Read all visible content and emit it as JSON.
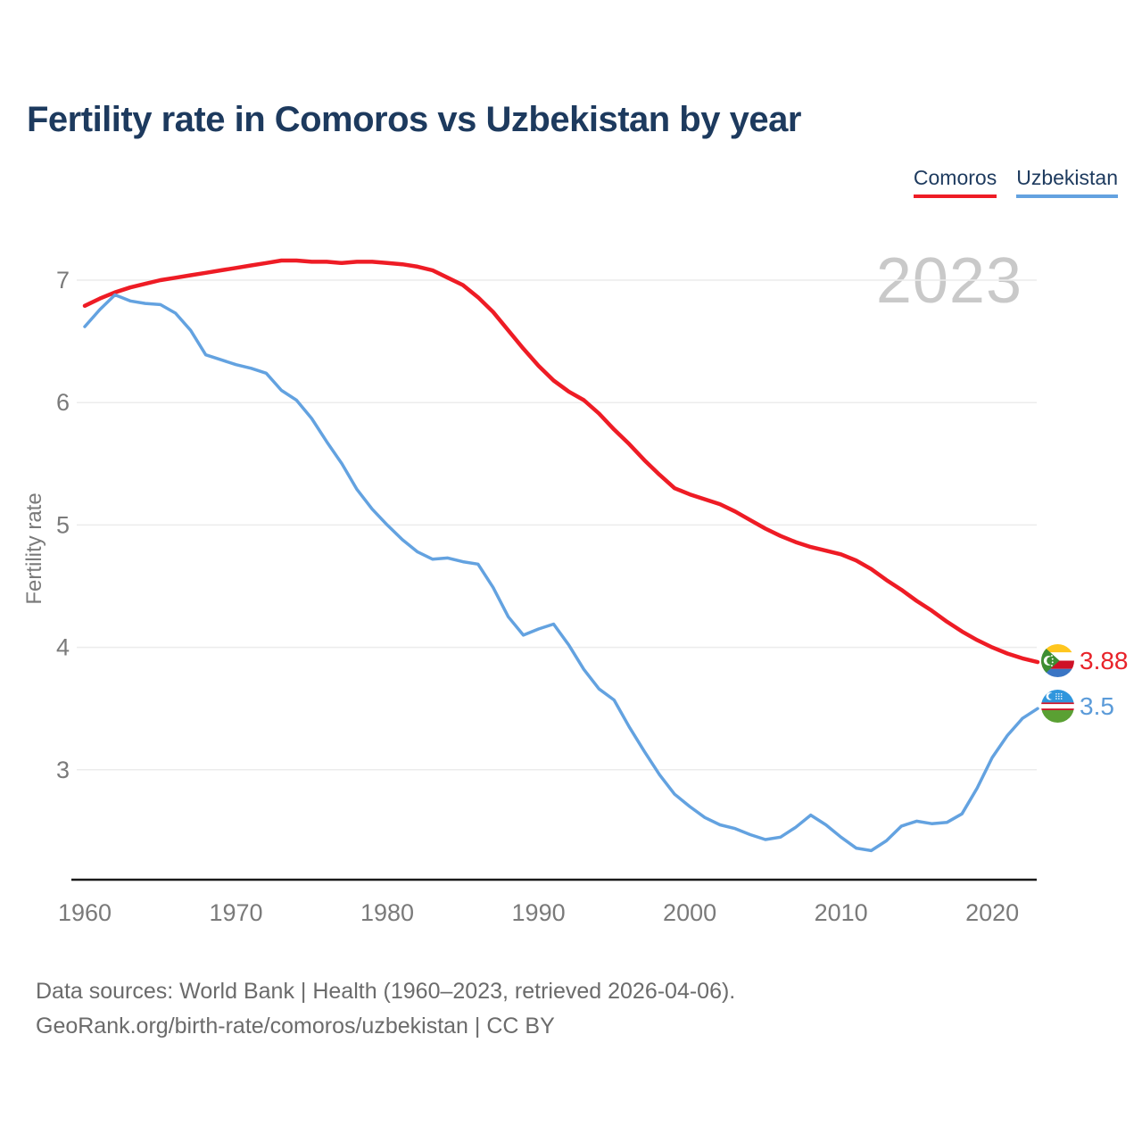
{
  "title": "Fertility rate in Comoros vs Uzbekistan by year",
  "watermark_year": "2023",
  "legend": {
    "items": [
      {
        "label": "Comoros",
        "color": "#ee1c25"
      },
      {
        "label": "Uzbekistan",
        "color": "#63a2e0"
      }
    ]
  },
  "footer": {
    "line1": "Data sources: World Bank | Health (1960–2023, retrieved 2026-04-06).",
    "line2": "GeoRank.org/birth-rate/comoros/uzbekistan | CC BY"
  },
  "colors": {
    "comoros_red": "#ee1c25",
    "uzbekistan_blue": "#63a2e0",
    "title_navy": "#1d3a5e",
    "tick_gray": "#7a7a7a",
    "gridline": "#ececec",
    "axis_line": "#1a1a1a",
    "watermark_gray": "#c9c9c9"
  },
  "chart_data": {
    "type": "line",
    "title": "Fertility rate in Comoros vs Uzbekistan by year",
    "xlabel": "",
    "ylabel": "Fertility rate",
    "xlim": [
      1960,
      2023
    ],
    "ylim": [
      2.2,
      7.3
    ],
    "x_ticks": [
      1960,
      1970,
      1980,
      1990,
      2000,
      2010,
      2020
    ],
    "y_ticks": [
      7,
      6,
      5,
      4,
      3
    ],
    "grid": "horizontal",
    "legend_position": "top-right",
    "x": [
      1960,
      1961,
      1962,
      1963,
      1964,
      1965,
      1966,
      1967,
      1968,
      1969,
      1970,
      1971,
      1972,
      1973,
      1974,
      1975,
      1976,
      1977,
      1978,
      1979,
      1980,
      1981,
      1982,
      1983,
      1984,
      1985,
      1986,
      1987,
      1988,
      1989,
      1990,
      1991,
      1992,
      1993,
      1994,
      1995,
      1996,
      1997,
      1998,
      1999,
      2000,
      2001,
      2002,
      2003,
      2004,
      2005,
      2006,
      2007,
      2008,
      2009,
      2010,
      2011,
      2012,
      2013,
      2014,
      2015,
      2016,
      2017,
      2018,
      2019,
      2020,
      2021,
      2022,
      2023
    ],
    "series": [
      {
        "name": "Comoros",
        "color": "#ee1c25",
        "end_label": "3.88",
        "values": [
          6.79,
          6.85,
          6.9,
          6.94,
          6.97,
          7.0,
          7.02,
          7.04,
          7.06,
          7.08,
          7.1,
          7.12,
          7.14,
          7.16,
          7.16,
          7.15,
          7.15,
          7.14,
          7.15,
          7.15,
          7.14,
          7.13,
          7.11,
          7.08,
          7.02,
          6.96,
          6.86,
          6.74,
          6.59,
          6.44,
          6.3,
          6.18,
          6.09,
          6.02,
          5.91,
          5.78,
          5.66,
          5.53,
          5.41,
          5.3,
          5.25,
          5.21,
          5.17,
          5.11,
          5.04,
          4.97,
          4.91,
          4.86,
          4.82,
          4.79,
          4.76,
          4.71,
          4.64,
          4.55,
          4.47,
          4.38,
          4.3,
          4.21,
          4.13,
          4.06,
          4.0,
          3.95,
          3.91,
          3.88
        ]
      },
      {
        "name": "Uzbekistan",
        "color": "#63a2e0",
        "end_label": "3.5",
        "values": [
          6.62,
          6.76,
          6.88,
          6.83,
          6.81,
          6.8,
          6.73,
          6.59,
          6.39,
          6.35,
          6.31,
          6.28,
          6.24,
          6.1,
          6.02,
          5.87,
          5.68,
          5.5,
          5.29,
          5.13,
          5.0,
          4.88,
          4.78,
          4.72,
          4.73,
          4.7,
          4.68,
          4.49,
          4.25,
          4.1,
          4.15,
          4.19,
          4.02,
          3.82,
          3.66,
          3.57,
          3.35,
          3.15,
          2.96,
          2.8,
          2.7,
          2.61,
          2.55,
          2.52,
          2.47,
          2.43,
          2.45,
          2.53,
          2.63,
          2.55,
          2.45,
          2.36,
          2.34,
          2.42,
          2.54,
          2.58,
          2.56,
          2.57,
          2.64,
          2.85,
          3.1,
          3.28,
          3.42,
          3.5
        ]
      }
    ]
  }
}
